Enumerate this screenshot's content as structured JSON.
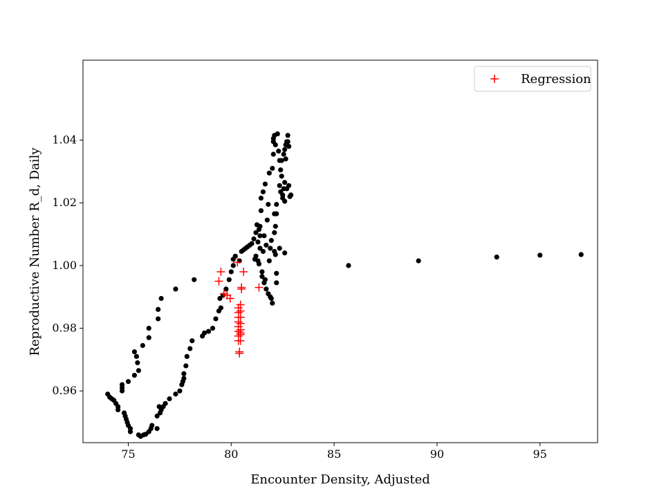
{
  "chart_data": {
    "type": "scatter",
    "xlabel": "Encounter Density, Adjusted",
    "ylabel": "Reproductive Number R_d, Daily",
    "xlim": [
      72.8,
      97.8
    ],
    "ylim": [
      0.9435,
      1.0655
    ],
    "x_ticks": [
      75,
      80,
      85,
      90,
      95
    ],
    "y_ticks": [
      0.96,
      0.98,
      1.0,
      1.02,
      1.04
    ],
    "x_tick_labels": [
      "75",
      "80",
      "85",
      "90",
      "95"
    ],
    "y_tick_labels": [
      "0.96",
      "0.98",
      "1.00",
      "1.02",
      "1.04"
    ],
    "grid": false,
    "legend_position": "top-right",
    "series": [
      {
        "marker": "dot",
        "color": "#000000",
        "points": [
          [
            74.0,
            0.959
          ],
          [
            74.1,
            0.958
          ],
          [
            74.2,
            0.9575
          ],
          [
            74.3,
            0.957
          ],
          [
            74.4,
            0.956
          ],
          [
            74.5,
            0.955
          ],
          [
            74.5,
            0.954
          ],
          [
            74.7,
            0.962
          ],
          [
            74.7,
            0.961
          ],
          [
            74.7,
            0.96
          ],
          [
            74.8,
            0.953
          ],
          [
            74.85,
            0.952
          ],
          [
            74.9,
            0.951
          ],
          [
            74.95,
            0.95
          ],
          [
            75.0,
            0.949
          ],
          [
            75.0,
            0.963
          ],
          [
            75.1,
            0.948
          ],
          [
            75.1,
            0.947
          ],
          [
            75.3,
            0.965
          ],
          [
            75.3,
            0.9725
          ],
          [
            75.4,
            0.971
          ],
          [
            75.45,
            0.969
          ],
          [
            75.5,
            0.9665
          ],
          [
            75.5,
            0.946
          ],
          [
            75.6,
            0.9455
          ],
          [
            75.7,
            0.9745
          ],
          [
            75.75,
            0.946
          ],
          [
            75.85,
            0.9462
          ],
          [
            76.0,
            0.98
          ],
          [
            76.0,
            0.977
          ],
          [
            76.0,
            0.947
          ],
          [
            76.1,
            0.948
          ],
          [
            76.15,
            0.949
          ],
          [
            76.4,
            0.948
          ],
          [
            76.4,
            0.952
          ],
          [
            76.45,
            0.983
          ],
          [
            76.45,
            0.986
          ],
          [
            76.5,
            0.955
          ],
          [
            76.55,
            0.953
          ],
          [
            76.6,
            0.954
          ],
          [
            76.6,
            0.9895
          ],
          [
            76.7,
            0.955
          ],
          [
            76.8,
            0.956
          ],
          [
            77.0,
            0.9575
          ],
          [
            77.3,
            0.9925
          ],
          [
            77.3,
            0.959
          ],
          [
            77.5,
            0.96
          ],
          [
            77.6,
            0.962
          ],
          [
            77.65,
            0.963
          ],
          [
            77.7,
            0.964
          ],
          [
            77.7,
            0.9655
          ],
          [
            77.8,
            0.968
          ],
          [
            77.85,
            0.971
          ],
          [
            78.0,
            0.9735
          ],
          [
            78.1,
            0.976
          ],
          [
            78.2,
            0.9955
          ],
          [
            78.6,
            0.9775
          ],
          [
            78.7,
            0.9785
          ],
          [
            78.9,
            0.979
          ],
          [
            79.1,
            0.98
          ],
          [
            79.25,
            0.983
          ],
          [
            79.4,
            0.9855
          ],
          [
            79.45,
            0.9895
          ],
          [
            79.5,
            0.9865
          ],
          [
            79.6,
            0.9905
          ],
          [
            79.75,
            0.9925
          ],
          [
            79.9,
            0.9955
          ],
          [
            80.0,
            0.998
          ],
          [
            80.1,
            1.0
          ],
          [
            80.1,
            1.002
          ],
          [
            80.2,
            1.003
          ],
          [
            80.4,
            1.0015
          ],
          [
            80.5,
            1.0045
          ],
          [
            80.6,
            1.005
          ],
          [
            80.7,
            1.0055
          ],
          [
            80.8,
            1.006
          ],
          [
            80.9,
            1.0065
          ],
          [
            81.0,
            1.007
          ],
          [
            81.1,
            1.0085
          ],
          [
            81.15,
            1.002
          ],
          [
            81.2,
            1.003
          ],
          [
            81.2,
            1.0105
          ],
          [
            81.25,
            1.013
          ],
          [
            81.3,
            1.0015
          ],
          [
            81.3,
            1.0075
          ],
          [
            81.35,
            1.0115
          ],
          [
            81.35,
            1.0005
          ],
          [
            81.4,
            1.0125
          ],
          [
            81.4,
            1.0095
          ],
          [
            81.4,
            1.0055
          ],
          [
            81.45,
            1.0175
          ],
          [
            81.45,
            1.0215
          ],
          [
            81.5,
            0.998
          ],
          [
            81.5,
            0.9965
          ],
          [
            81.55,
            1.0045
          ],
          [
            81.55,
            1.0235
          ],
          [
            81.6,
            1.0095
          ],
          [
            81.6,
            0.9945
          ],
          [
            81.65,
            0.9955
          ],
          [
            81.65,
            1.026
          ],
          [
            81.7,
            1.0065
          ],
          [
            81.7,
            0.9925
          ],
          [
            81.75,
            1.0145
          ],
          [
            81.8,
            1.0195
          ],
          [
            81.8,
            0.991
          ],
          [
            81.85,
            1.0015
          ],
          [
            81.85,
            1.0295
          ],
          [
            81.9,
            0.99
          ],
          [
            81.9,
            1.0055
          ],
          [
            81.95,
            1.008
          ],
          [
            81.95,
            0.9895
          ],
          [
            82.0,
            1.031
          ],
          [
            82.0,
            0.988
          ],
          [
            82.05,
            1.0355
          ],
          [
            82.05,
            1.0395
          ],
          [
            82.05,
            1.0405
          ],
          [
            82.1,
            1.0045
          ],
          [
            82.1,
            1.0105
          ],
          [
            82.1,
            1.0165
          ],
          [
            82.1,
            1.0415
          ],
          [
            82.15,
            1.0125
          ],
          [
            82.15,
            1.0035
          ],
          [
            82.15,
            1.0385
          ],
          [
            82.2,
            1.0165
          ],
          [
            82.2,
            1.0195
          ],
          [
            82.2,
            0.9975
          ],
          [
            82.2,
            0.9945
          ],
          [
            82.25,
            1.042
          ],
          [
            82.3,
            1.0365
          ],
          [
            82.35,
            1.0335
          ],
          [
            82.35,
            1.0255
          ],
          [
            82.35,
            1.0055
          ],
          [
            82.4,
            1.0305
          ],
          [
            82.4,
            1.0235
          ],
          [
            82.45,
            1.0335
          ],
          [
            82.45,
            1.0285
          ],
          [
            82.5,
            1.0225
          ],
          [
            82.5,
            1.0215
          ],
          [
            82.55,
            1.0245
          ],
          [
            82.55,
            1.0355
          ],
          [
            82.6,
            1.037
          ],
          [
            82.6,
            1.0265
          ],
          [
            82.6,
            1.0205
          ],
          [
            82.65,
            1.0385
          ],
          [
            82.65,
            1.034
          ],
          [
            82.7,
            1.0395
          ],
          [
            82.7,
            1.0245
          ],
          [
            82.75,
            1.0415
          ],
          [
            82.75,
            1.0395
          ],
          [
            82.8,
            1.038
          ],
          [
            82.8,
            1.0255
          ],
          [
            82.85,
            1.022
          ],
          [
            82.9,
            1.0225
          ],
          [
            82.6,
            1.004
          ],
          [
            85.7,
            1.0
          ],
          [
            89.1,
            1.0015
          ],
          [
            92.9,
            1.0027
          ],
          [
            95.0,
            1.0033
          ],
          [
            97.0,
            1.0035
          ]
        ]
      },
      {
        "name": "Regression",
        "marker": "plus",
        "color": "#ff0000",
        "points": [
          [
            79.4,
            0.995
          ],
          [
            79.5,
            0.998
          ],
          [
            79.65,
            0.991
          ],
          [
            79.8,
            0.9905
          ],
          [
            79.95,
            0.9895
          ],
          [
            80.3,
            1.001
          ],
          [
            80.35,
            0.9865
          ],
          [
            80.35,
            0.985
          ],
          [
            80.35,
            0.9835
          ],
          [
            80.35,
            0.982
          ],
          [
            80.35,
            0.9805
          ],
          [
            80.35,
            0.979
          ],
          [
            80.35,
            0.9775
          ],
          [
            80.35,
            0.976
          ],
          [
            80.4,
            0.9725
          ],
          [
            80.4,
            0.972
          ],
          [
            80.45,
            0.9875
          ],
          [
            80.45,
            0.9855
          ],
          [
            80.45,
            0.9835
          ],
          [
            80.45,
            0.9815
          ],
          [
            80.45,
            0.9795
          ],
          [
            80.45,
            0.9785
          ],
          [
            80.45,
            0.978
          ],
          [
            80.45,
            0.976
          ],
          [
            80.5,
            0.993
          ],
          [
            80.5,
            0.9925
          ],
          [
            80.6,
            0.998
          ],
          [
            81.35,
            0.993
          ]
        ]
      }
    ]
  }
}
